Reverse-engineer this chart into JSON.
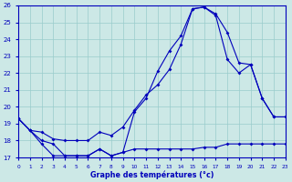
{
  "xlabel": "Graphe des températures (°c)",
  "bg_color": "#cce8e6",
  "line_color": "#0000bb",
  "grid_color": "#99cccc",
  "xmin": 0,
  "xmax": 23,
  "ymin": 17,
  "ymax": 26,
  "line1_x": [
    0,
    1,
    2,
    3,
    4,
    5,
    6,
    7,
    8,
    9,
    10,
    11,
    12,
    13,
    14,
    15,
    16,
    17,
    18,
    19,
    20,
    21,
    22,
    23
  ],
  "line1_y": [
    19.3,
    18.6,
    17.8,
    17.1,
    17.1,
    17.1,
    17.1,
    17.5,
    17.1,
    17.3,
    17.5,
    17.5,
    17.5,
    17.5,
    17.5,
    17.5,
    17.6,
    17.6,
    17.8,
    17.8,
    17.8,
    17.8,
    17.8,
    17.8
  ],
  "line2_x": [
    0,
    1,
    2,
    3,
    4,
    5,
    6,
    7,
    8,
    9,
    10,
    11,
    12,
    13,
    14,
    15,
    16,
    17,
    18,
    19,
    20,
    21,
    22,
    23
  ],
  "line2_y": [
    19.3,
    18.6,
    18.0,
    17.8,
    17.1,
    17.1,
    17.1,
    17.5,
    17.1,
    17.3,
    19.7,
    20.5,
    22.1,
    23.3,
    24.2,
    25.8,
    25.9,
    25.5,
    24.4,
    22.6,
    22.5,
    20.5,
    19.4,
    19.4
  ],
  "line3_x": [
    0,
    1,
    2,
    3,
    4,
    5,
    6,
    7,
    8,
    9,
    10,
    11,
    12,
    13,
    14,
    15,
    16,
    17,
    18,
    19,
    20,
    21,
    22,
    23
  ],
  "line3_y": [
    19.3,
    18.6,
    18.5,
    18.1,
    18.0,
    18.0,
    18.0,
    18.5,
    18.3,
    18.8,
    19.8,
    20.7,
    21.3,
    22.2,
    23.7,
    25.8,
    25.9,
    25.4,
    22.8,
    22.0,
    22.5,
    20.5,
    19.4,
    19.4
  ]
}
